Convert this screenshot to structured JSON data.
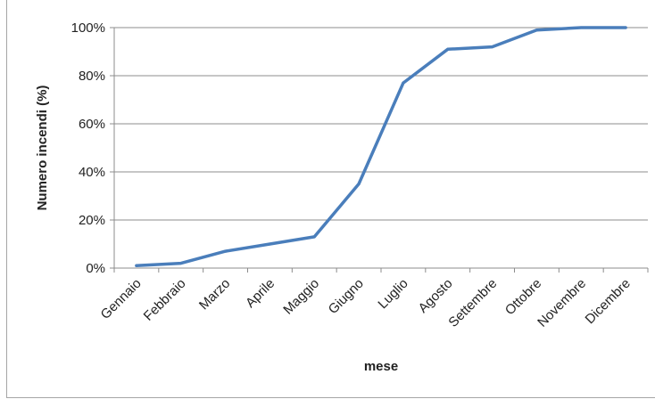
{
  "chart_data": {
    "type": "line",
    "title": "",
    "xlabel": "mese",
    "ylabel": "Numero incendi (%)",
    "categories": [
      "Gennaio",
      "Febbraio",
      "Marzo",
      "Aprile",
      "Maggio",
      "Giugno",
      "Luglio",
      "Agosto",
      "Settembre",
      "Ottobre",
      "Novembre",
      "Dicembre"
    ],
    "series": [
      {
        "values": [
          1,
          2,
          7,
          10,
          13,
          35,
          77,
          91,
          92,
          99,
          100,
          100
        ],
        "color": "#4a7ebb"
      }
    ],
    "ylim": [
      0,
      100
    ],
    "yticks": [
      0,
      20,
      40,
      60,
      80,
      100
    ],
    "ytick_labels": [
      "0%",
      "20%",
      "40%",
      "60%",
      "80%",
      "100%"
    ],
    "grid": true,
    "legend": "none"
  }
}
